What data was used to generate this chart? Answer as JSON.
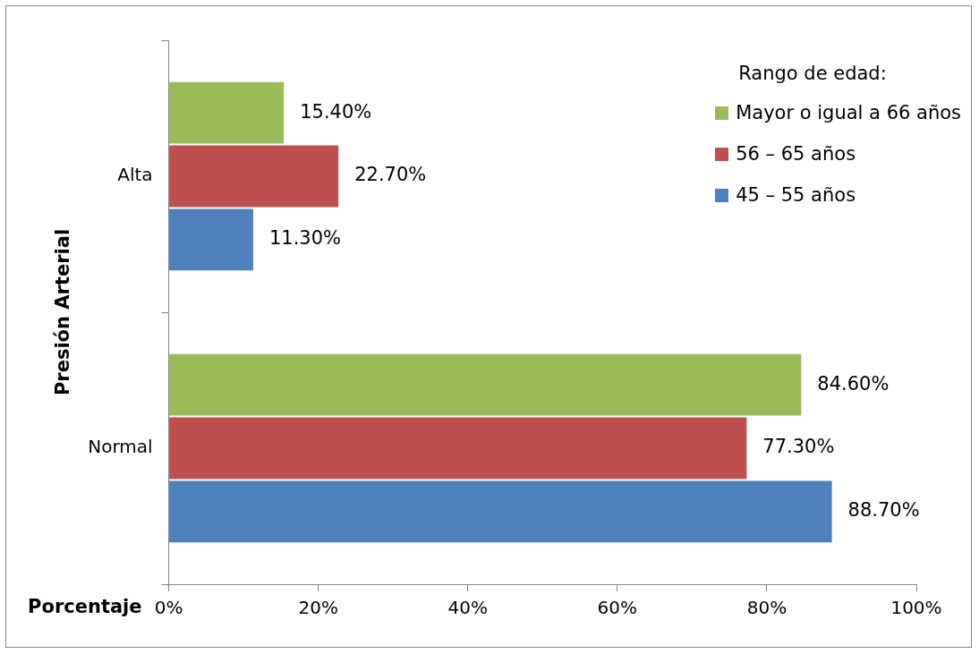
{
  "chart_data": {
    "type": "bar",
    "orientation": "horizontal",
    "xlabel": "Porcentaje",
    "ylabel": "Presión Arterial",
    "legend_title": "Rango de edad:",
    "legend": "top right",
    "grid": false,
    "categories": [
      "Alta",
      "Normal"
    ],
    "series": [
      {
        "name": "Mayor o igual a 66 años",
        "color": "#9bbb59",
        "values": [
          15.4,
          84.6
        ],
        "value_labels": [
          "15.40%",
          "84.60%"
        ]
      },
      {
        "name": "56 – 65 años",
        "color": "#c0504d",
        "values": [
          22.7,
          77.3
        ],
        "value_labels": [
          "22.70%",
          "77.30%"
        ]
      },
      {
        "name": "45 – 55 años",
        "color": "#4f81bd",
        "values": [
          11.3,
          88.7
        ],
        "value_labels": [
          "11.30%",
          "88.70%"
        ]
      }
    ],
    "xlim": [
      0,
      100
    ],
    "xticks": [
      {
        "value": 0,
        "label": "0%"
      },
      {
        "value": 20,
        "label": "20%"
      },
      {
        "value": 40,
        "label": "40%"
      },
      {
        "value": 60,
        "label": "60%"
      },
      {
        "value": 80,
        "label": "80%"
      },
      {
        "value": 100,
        "label": "100%"
      }
    ]
  }
}
